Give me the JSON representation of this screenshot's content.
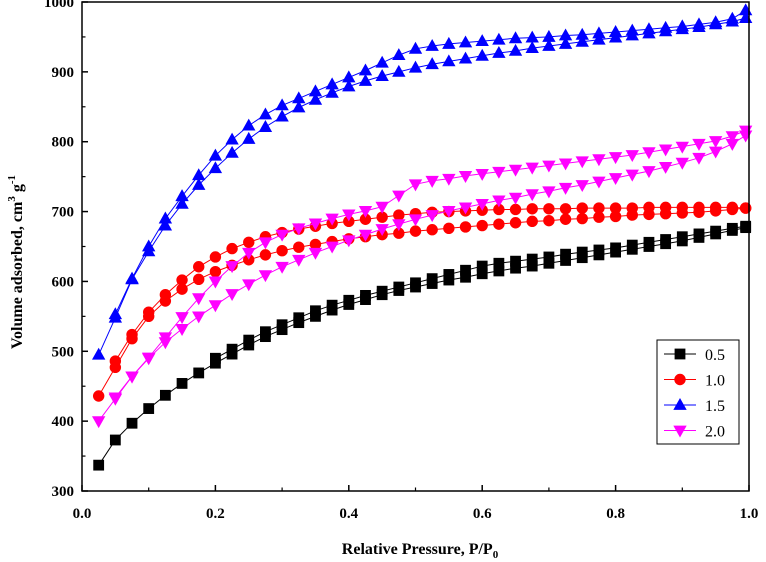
{
  "chart_data": {
    "type": "line",
    "xlabel": "Relative Pressure, P/P",
    "xlabel_sub": "0",
    "ylabel": "Volume adsorbed, cm",
    "ylabel_sup1": "3",
    "ylabel_mid": " g",
    "ylabel_sup2": "-1",
    "xlim": [
      0.0,
      1.0
    ],
    "ylim": [
      300,
      1000
    ],
    "xticks": [
      "0.0",
      "0.2",
      "0.4",
      "0.6",
      "0.8",
      "1.0"
    ],
    "yticks": [
      "300",
      "400",
      "500",
      "600",
      "700",
      "800",
      "900",
      "1000"
    ],
    "legend_position": "bottom-right",
    "grid": false,
    "series": [
      {
        "name": "0.5",
        "color": "#000000",
        "marker": "square",
        "adsorption": {
          "x": [
            0.025,
            0.05,
            0.075,
            0.1,
            0.125,
            0.15,
            0.175,
            0.2,
            0.225,
            0.25,
            0.275,
            0.3,
            0.325,
            0.35,
            0.375,
            0.4,
            0.425,
            0.45,
            0.475,
            0.5,
            0.525,
            0.55,
            0.575,
            0.6,
            0.625,
            0.65,
            0.675,
            0.7,
            0.725,
            0.75,
            0.775,
            0.8,
            0.825,
            0.85,
            0.875,
            0.9,
            0.925,
            0.95,
            0.975,
            0.995
          ],
          "y": [
            337,
            373,
            397,
            418,
            437,
            454,
            469,
            483,
            496,
            509,
            521,
            531,
            541,
            550,
            559,
            567,
            574,
            581,
            587,
            592,
            597,
            602,
            606,
            611,
            615,
            619,
            622,
            626,
            630,
            634,
            638,
            642,
            646,
            650,
            654,
            658,
            663,
            668,
            673,
            677
          ]
        },
        "desorption": {
          "x": [
            0.995,
            0.975,
            0.95,
            0.925,
            0.9,
            0.875,
            0.85,
            0.825,
            0.8,
            0.775,
            0.75,
            0.725,
            0.7,
            0.675,
            0.65,
            0.625,
            0.6,
            0.575,
            0.55,
            0.525,
            0.5,
            0.475,
            0.45,
            0.425,
            0.4,
            0.375,
            0.35,
            0.325,
            0.3,
            0.275,
            0.25,
            0.225,
            0.2
          ],
          "y": [
            679,
            676,
            672,
            668,
            664,
            660,
            656,
            652,
            648,
            645,
            642,
            639,
            635,
            632,
            629,
            626,
            622,
            616,
            610,
            604,
            598,
            592,
            586,
            580,
            573,
            566,
            558,
            548,
            538,
            528,
            516,
            503,
            490
          ]
        }
      },
      {
        "name": "1.0",
        "color": "#ff0000",
        "marker": "circle",
        "adsorption": {
          "x": [
            0.025,
            0.05,
            0.075,
            0.1,
            0.125,
            0.15,
            0.175,
            0.2,
            0.225,
            0.25,
            0.275,
            0.3,
            0.325,
            0.35,
            0.375,
            0.4,
            0.425,
            0.45,
            0.475,
            0.5,
            0.525,
            0.55,
            0.575,
            0.6,
            0.625,
            0.65,
            0.675,
            0.7,
            0.725,
            0.75,
            0.775,
            0.8,
            0.825,
            0.85,
            0.875,
            0.9,
            0.925,
            0.95,
            0.975,
            0.995
          ],
          "y": [
            436,
            477,
            518,
            550,
            572,
            589,
            603,
            614,
            623,
            631,
            638,
            644,
            649,
            653,
            657,
            661,
            664,
            667,
            669,
            672,
            674,
            676,
            678,
            680,
            682,
            684,
            686,
            687,
            689,
            690,
            692,
            693,
            695,
            696,
            697,
            698,
            699,
            701,
            703,
            705
          ]
        },
        "desorption": {
          "x": [
            0.995,
            0.975,
            0.95,
            0.925,
            0.9,
            0.875,
            0.85,
            0.825,
            0.8,
            0.775,
            0.75,
            0.725,
            0.7,
            0.675,
            0.65,
            0.625,
            0.6,
            0.575,
            0.55,
            0.525,
            0.5,
            0.475,
            0.45,
            0.425,
            0.4,
            0.375,
            0.35,
            0.325,
            0.3,
            0.275,
            0.25,
            0.225,
            0.2,
            0.175,
            0.15,
            0.125,
            0.1,
            0.075,
            0.05
          ],
          "y": [
            705,
            706,
            706,
            706,
            706,
            706,
            706,
            705,
            705,
            705,
            705,
            704,
            704,
            704,
            703,
            703,
            702,
            701,
            700,
            699,
            697,
            695,
            692,
            689,
            686,
            683,
            679,
            675,
            670,
            664,
            656,
            647,
            635,
            621,
            602,
            581,
            556,
            524,
            486
          ]
        }
      },
      {
        "name": "1.5",
        "color": "#0000ff",
        "marker": "triangle-up",
        "adsorption": {
          "x": [
            0.025,
            0.05,
            0.075,
            0.1,
            0.125,
            0.15,
            0.175,
            0.2,
            0.225,
            0.25,
            0.275,
            0.3,
            0.325,
            0.35,
            0.375,
            0.4,
            0.425,
            0.45,
            0.475,
            0.5,
            0.525,
            0.55,
            0.575,
            0.6,
            0.625,
            0.65,
            0.675,
            0.7,
            0.725,
            0.75,
            0.775,
            0.8,
            0.825,
            0.85,
            0.875,
            0.9,
            0.925,
            0.95,
            0.975,
            0.995
          ],
          "y": [
            495,
            548,
            603,
            643,
            680,
            711,
            738,
            762,
            784,
            804,
            821,
            836,
            849,
            860,
            870,
            879,
            887,
            894,
            900,
            906,
            911,
            915,
            919,
            923,
            927,
            930,
            934,
            937,
            940,
            943,
            946,
            949,
            952,
            955,
            958,
            961,
            964,
            968,
            972,
            977
          ]
        },
        "desorption": {
          "x": [
            0.995,
            0.975,
            0.95,
            0.925,
            0.9,
            0.875,
            0.85,
            0.825,
            0.8,
            0.775,
            0.75,
            0.725,
            0.7,
            0.675,
            0.65,
            0.625,
            0.6,
            0.575,
            0.55,
            0.525,
            0.5,
            0.475,
            0.45,
            0.425,
            0.4,
            0.375,
            0.35,
            0.325,
            0.3,
            0.275,
            0.25,
            0.225,
            0.2,
            0.175,
            0.15,
            0.125,
            0.1,
            0.075,
            0.05
          ],
          "y": [
            988,
            976,
            971,
            968,
            965,
            963,
            961,
            959,
            957,
            955,
            953,
            952,
            950,
            949,
            948,
            946,
            944,
            942,
            940,
            937,
            933,
            924,
            913,
            902,
            892,
            882,
            872,
            862,
            852,
            839,
            823,
            803,
            780,
            752,
            722,
            690,
            650,
            604,
            553
          ]
        }
      },
      {
        "name": "2.0",
        "color": "#ff00ff",
        "marker": "triangle-down",
        "adsorption": {
          "x": [
            0.025,
            0.05,
            0.075,
            0.1,
            0.125,
            0.15,
            0.175,
            0.2,
            0.225,
            0.25,
            0.275,
            0.3,
            0.325,
            0.35,
            0.375,
            0.4,
            0.425,
            0.45,
            0.475,
            0.5,
            0.525,
            0.55,
            0.575,
            0.6,
            0.625,
            0.65,
            0.675,
            0.7,
            0.725,
            0.75,
            0.775,
            0.8,
            0.825,
            0.85,
            0.875,
            0.9,
            0.925,
            0.95,
            0.975,
            0.995
          ],
          "y": [
            400,
            432,
            464,
            490,
            513,
            532,
            550,
            566,
            582,
            596,
            609,
            621,
            631,
            641,
            650,
            659,
            667,
            675,
            682,
            689,
            695,
            701,
            706,
            711,
            716,
            720,
            725,
            729,
            734,
            738,
            743,
            748,
            753,
            758,
            764,
            770,
            777,
            786,
            797,
            809
          ]
        },
        "desorption": {
          "x": [
            0.995,
            0.975,
            0.95,
            0.925,
            0.9,
            0.875,
            0.85,
            0.825,
            0.8,
            0.775,
            0.75,
            0.725,
            0.7,
            0.675,
            0.65,
            0.625,
            0.6,
            0.575,
            0.55,
            0.525,
            0.5,
            0.475,
            0.45,
            0.425,
            0.4,
            0.375,
            0.35,
            0.325,
            0.3,
            0.275,
            0.25,
            0.225,
            0.2,
            0.175,
            0.15,
            0.125,
            0.1,
            0.075,
            0.05
          ],
          "y": [
            816,
            808,
            801,
            797,
            793,
            789,
            785,
            781,
            778,
            775,
            772,
            769,
            766,
            763,
            760,
            757,
            754,
            751,
            747,
            744,
            739,
            723,
            707,
            701,
            696,
            690,
            683,
            676,
            667,
            656,
            641,
            622,
            600,
            576,
            549,
            520,
            491,
            464,
            434
          ]
        }
      }
    ]
  }
}
